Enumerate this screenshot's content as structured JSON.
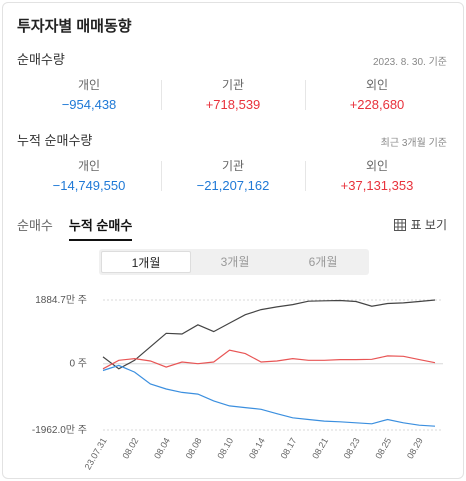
{
  "title": "투자자별 매매동향",
  "net": {
    "label": "순매수량",
    "date": "2023. 8. 30. 기준",
    "items": [
      {
        "name": "개인",
        "value": "−954,438"
      },
      {
        "name": "기관",
        "value": "+718,539"
      },
      {
        "name": "외인",
        "value": "+228,680"
      }
    ]
  },
  "cumulative": {
    "label": "누적 순매수량",
    "note": "최근 3개월 기준",
    "items": [
      {
        "name": "개인",
        "value": "−14,749,550"
      },
      {
        "name": "기관",
        "value": "−21,207,162"
      },
      {
        "name": "외인",
        "value": "+37,131,353"
      }
    ]
  },
  "tabs": [
    {
      "label": "순매수",
      "active": false
    },
    {
      "label": "누적 순매수",
      "active": true
    }
  ],
  "table_view_label": "표 보기",
  "periods": [
    {
      "label": "1개월",
      "active": true
    },
    {
      "label": "3개월",
      "active": false
    },
    {
      "label": "6개월",
      "active": false
    }
  ],
  "colors": {
    "individual": "#3b8fdf",
    "institution": "#e85555",
    "foreign": "#444444",
    "negative": "#1f79d6",
    "positive": "#e8323c"
  },
  "chart_data": {
    "type": "line",
    "x": [
      "23.07.31",
      "08.01",
      "08.02",
      "08.03",
      "08.04",
      "08.07",
      "08.08",
      "08.09",
      "08.10",
      "08.11",
      "08.14",
      "08.16",
      "08.17",
      "08.18",
      "08.21",
      "08.22",
      "08.23",
      "08.24",
      "08.25",
      "08.28",
      "08.29",
      "08.30"
    ],
    "x_tick_labels": [
      "23.07.31",
      "08.02",
      "08.04",
      "08.08",
      "08.10",
      "08.14",
      "08.17",
      "08.21",
      "08.23",
      "08.25",
      "08.29"
    ],
    "y_tick_labels": [
      "1884.7만 주",
      "0 주",
      "-1962.0만 주"
    ],
    "ylim": [
      -1962.0,
      1884.7
    ],
    "series": [
      {
        "key": "foreign",
        "values": [
          200,
          -150,
          100,
          500,
          900,
          880,
          1150,
          950,
          1200,
          1450,
          1600,
          1680,
          1750,
          1850,
          1860,
          1870,
          1840,
          1700,
          1780,
          1800,
          1840,
          1884.7
        ]
      },
      {
        "key": "institution",
        "values": [
          -150,
          100,
          150,
          80,
          -100,
          50,
          0,
          50,
          400,
          300,
          50,
          80,
          150,
          100,
          100,
          120,
          120,
          130,
          230,
          220,
          120,
          30
        ]
      },
      {
        "key": "individual",
        "values": [
          -200,
          -50,
          -250,
          -600,
          -750,
          -850,
          -900,
          -1100,
          -1250,
          -1300,
          -1350,
          -1480,
          -1600,
          -1650,
          -1700,
          -1720,
          -1750,
          -1780,
          -1650,
          -1750,
          -1820,
          -1850
        ]
      }
    ]
  }
}
